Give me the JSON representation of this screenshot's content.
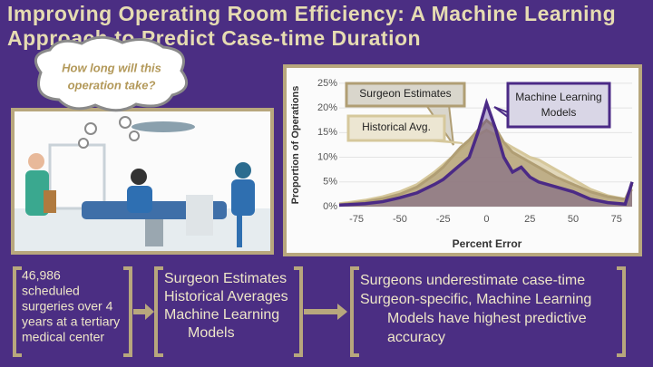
{
  "title_lines": [
    "Improving Operating Room Efficiency: A Machine Learning",
    "Approach to Predict Case-time Duration"
  ],
  "thought_bubble": [
    "How long will this",
    "operation take?"
  ],
  "boxes": [
    [
      "46,986",
      "scheduled",
      "surgeries over 4",
      "years at a tertiary",
      "medical center"
    ],
    [
      "Surgeon Estimates",
      "Historical Averages",
      "Machine Learning",
      "Models"
    ],
    [
      "Surgeons underestimate case-time",
      "Surgeon-specific, Machine Learning",
      "Models have highest predictive",
      "accuracy"
    ]
  ],
  "chart_data": {
    "type": "area",
    "x_label": "Percent Error",
    "y_label": "Proportion of Operations",
    "x": [
      -85,
      -80,
      -70,
      -60,
      -50,
      -40,
      -30,
      -25,
      -20,
      -15,
      -10,
      -5,
      0,
      5,
      10,
      15,
      20,
      25,
      30,
      40,
      50,
      60,
      70,
      80,
      84
    ],
    "xlim": [
      -85,
      84
    ],
    "xticks": [
      -75,
      -50,
      -25,
      0,
      25,
      50,
      75
    ],
    "ylim": [
      0,
      27
    ],
    "yticks": [
      {
        "value": 0,
        "label": "0%"
      },
      {
        "value": 5,
        "label": "5%"
      },
      {
        "value": 10,
        "label": "10%"
      },
      {
        "value": 15,
        "label": "15%"
      },
      {
        "value": 20,
        "label": "20%"
      },
      {
        "value": 25,
        "label": "25%"
      }
    ],
    "grid": true,
    "series": [
      {
        "name": "Historical Avg.",
        "color": "#d6c89c",
        "values": [
          0.6,
          0.8,
          1.3,
          2,
          3,
          4.5,
          7,
          8.5,
          10,
          11.5,
          13,
          14.5,
          15.5,
          14.5,
          13,
          12,
          11,
          10,
          9.5,
          7.5,
          5.5,
          3.5,
          2.2,
          1.5,
          3.5
        ]
      },
      {
        "name": "Surgeon Estimates",
        "color": "#b09e74",
        "values": [
          0.4,
          0.6,
          1,
          1.6,
          2.5,
          4,
          6.5,
          8,
          10,
          12,
          13.5,
          15.5,
          17.5,
          16,
          13,
          11,
          10,
          9,
          8,
          6,
          4.5,
          3,
          2,
          1.5,
          4.5
        ]
      },
      {
        "name": "Machine Learning Models",
        "color": "#4b2a86",
        "values": [
          0.3,
          0.4,
          0.6,
          1,
          1.8,
          2.8,
          4.5,
          5.5,
          7,
          8.5,
          10,
          15,
          21,
          16,
          10,
          7,
          8,
          6,
          5,
          4,
          3,
          1.5,
          0.8,
          0.5,
          5
        ]
      }
    ]
  }
}
